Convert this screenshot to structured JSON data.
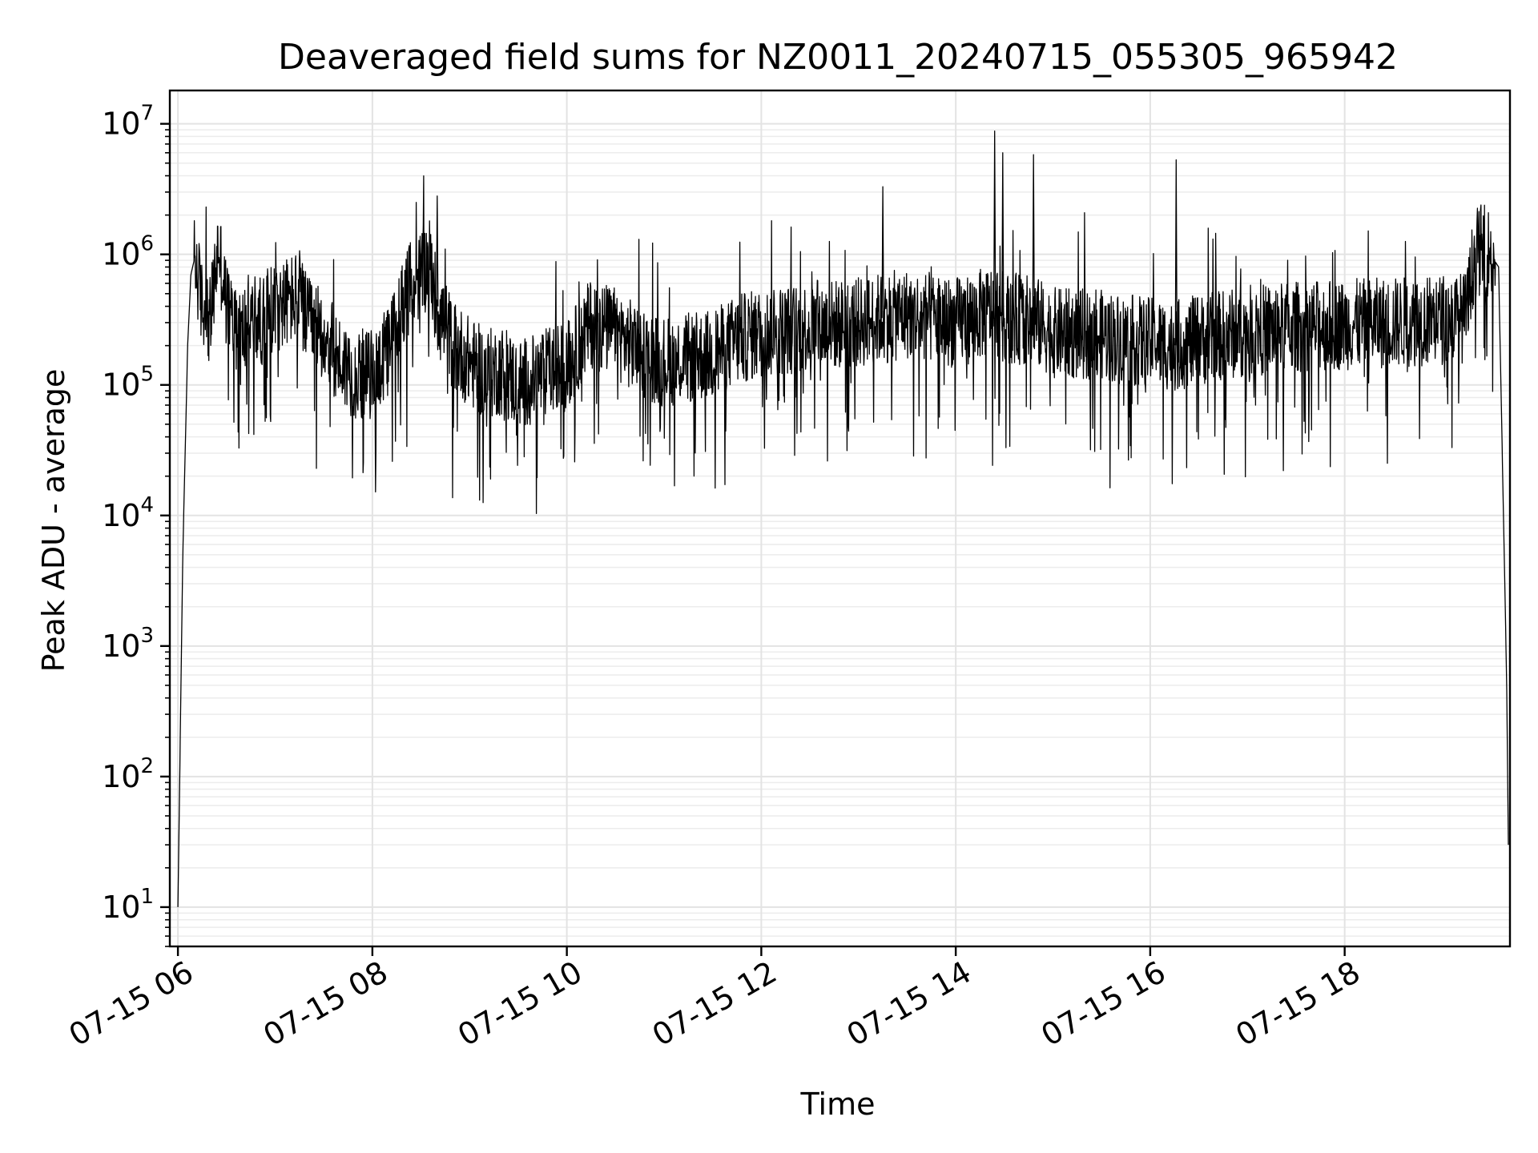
{
  "chart_data": {
    "type": "line",
    "title": "Deaveraged field sums for NZ0011_20240715_055305_965942",
    "xlabel": "Time",
    "ylabel": "Peak ADU - average",
    "y_scale": "log",
    "ylim": [
      5,
      18000000
    ],
    "xlim": [
      "2024-07-15 05:55",
      "2024-07-15 19:42"
    ],
    "grid": "major and minor",
    "line_color": "#000000",
    "x_ticks": [
      "07-15 06",
      "07-15 08",
      "07-15 10",
      "07-15 12",
      "07-15 14",
      "07-15 16",
      "07-15 18"
    ],
    "x_tick_values": [
      "2024-07-15 06:00",
      "2024-07-15 08:00",
      "2024-07-15 10:00",
      "2024-07-15 12:00",
      "2024-07-15 14:00",
      "2024-07-15 16:00",
      "2024-07-15 18:00"
    ],
    "y_ticks": [
      {
        "base": "10",
        "exp": "1",
        "value": 10
      },
      {
        "base": "10",
        "exp": "2",
        "value": 100
      },
      {
        "base": "10",
        "exp": "3",
        "value": 1000
      },
      {
        "base": "10",
        "exp": "4",
        "value": 10000
      },
      {
        "base": "10",
        "exp": "5",
        "value": 100000
      },
      {
        "base": "10",
        "exp": "6",
        "value": 1000000
      },
      {
        "base": "10",
        "exp": "7",
        "value": 10000000
      }
    ],
    "series": [
      {
        "x": [
          "2024-07-15 06:00",
          "2024-07-15 06:03",
          "2024-07-15 06:06",
          "2024-07-15 06:08",
          "2024-07-15 06:10",
          "2024-07-15 06:12",
          "2024-07-15 06:15",
          "2024-07-15 06:20",
          "2024-07-15 06:25",
          "2024-07-15 06:30",
          "2024-07-15 06:35",
          "2024-07-15 06:40",
          "2024-07-15 06:45",
          "2024-07-15 06:50",
          "2024-07-15 06:55",
          "2024-07-15 07:00",
          "2024-07-15 07:10",
          "2024-07-15 07:15",
          "2024-07-15 07:20",
          "2024-07-15 07:30",
          "2024-07-15 07:40",
          "2024-07-15 07:50",
          "2024-07-15 08:00",
          "2024-07-15 08:10",
          "2024-07-15 08:20",
          "2024-07-15 08:30",
          "2024-07-15 08:35",
          "2024-07-15 08:40",
          "2024-07-15 08:50",
          "2024-07-15 09:00",
          "2024-07-15 09:10",
          "2024-07-15 09:20",
          "2024-07-15 09:30",
          "2024-07-15 09:40",
          "2024-07-15 09:50",
          "2024-07-15 10:00",
          "2024-07-15 10:15",
          "2024-07-15 10:30",
          "2024-07-15 10:45",
          "2024-07-15 11:00",
          "2024-07-15 11:15",
          "2024-07-15 11:30",
          "2024-07-15 11:45",
          "2024-07-15 12:00",
          "2024-07-15 12:30",
          "2024-07-15 13:00",
          "2024-07-15 13:12",
          "2024-07-15 13:30",
          "2024-07-15 14:00",
          "2024-07-15 14:25",
          "2024-07-15 14:30",
          "2024-07-15 14:48",
          "2024-07-15 15:00",
          "2024-07-15 15:30",
          "2024-07-15 16:00",
          "2024-07-15 16:15",
          "2024-07-15 16:30",
          "2024-07-15 17:00",
          "2024-07-15 17:30",
          "2024-07-15 18:00",
          "2024-07-15 18:30",
          "2024-07-15 19:00",
          "2024-07-15 19:15",
          "2024-07-15 19:20",
          "2024-07-15 19:25",
          "2024-07-15 19:30",
          "2024-07-15 19:35",
          "2024-07-15 19:38",
          "2024-07-15 19:40",
          "2024-07-15 19:41"
        ],
        "y": [
          10,
          5000,
          200000,
          700000,
          900000,
          700000,
          400000,
          300000,
          1200000,
          400000,
          300000,
          250000,
          350000,
          300000,
          350000,
          400000,
          450000,
          500000,
          300000,
          250000,
          150000,
          120000,
          120000,
          180000,
          500000,
          700000,
          900000,
          400000,
          200000,
          150000,
          120000,
          130000,
          100000,
          110000,
          130000,
          140000,
          300000,
          250000,
          180000,
          150000,
          160000,
          170000,
          220000,
          250000,
          280000,
          300000,
          320000,
          350000,
          300000,
          380000,
          330000,
          310000,
          250000,
          240000,
          210000,
          200000,
          220000,
          260000,
          280000,
          290000,
          300000,
          320000,
          330000,
          1000000,
          1100000,
          1000000,
          800000,
          10000,
          500,
          30
        ]
      }
    ]
  }
}
